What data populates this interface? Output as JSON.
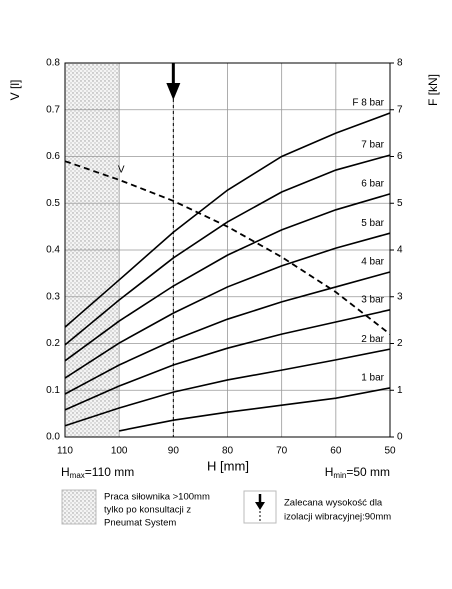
{
  "chart_data": {
    "type": "line",
    "x_label": "H [mm]",
    "y_label": "V [l]",
    "y2_label": "F [kN]",
    "x": [
      110,
      100,
      90,
      80,
      70,
      60,
      50
    ],
    "xlim": [
      110,
      50
    ],
    "xticks": [
      110,
      100,
      90,
      80,
      70,
      60,
      50
    ],
    "ylim": [
      0,
      0.8
    ],
    "yticks": [
      {
        "value": 0,
        "label": "0.0"
      },
      0.1,
      0.2,
      0.3,
      0.4,
      0.5,
      0.6,
      0.7,
      0.8
    ],
    "y2lim": [
      0,
      8
    ],
    "y2ticks": [
      0,
      1,
      2,
      3,
      4,
      5,
      6,
      7,
      8
    ],
    "grid": true,
    "series": [
      {
        "name": "V",
        "color": "#000000",
        "dashed": true,
        "values": [
          0.59,
          0.55,
          0.505,
          0.45,
          0.385,
          0.31,
          0.22
        ]
      },
      {
        "name": "F 8 bar",
        "color": "#000000",
        "axis": "y2",
        "values": [
          2.35,
          3.36,
          4.38,
          5.28,
          6.0,
          6.5,
          6.93
        ]
      },
      {
        "name": "7 bar",
        "color": "#000000",
        "axis": "y2",
        "values": [
          1.97,
          2.93,
          3.83,
          4.6,
          5.24,
          5.71,
          6.03
        ]
      },
      {
        "name": "6 bar",
        "color": "#000000",
        "axis": "y2",
        "values": [
          1.63,
          2.48,
          3.23,
          3.89,
          4.43,
          4.86,
          5.2
        ]
      },
      {
        "name": "5 bar",
        "color": "#000000",
        "axis": "y2",
        "values": [
          1.26,
          2.01,
          2.65,
          3.21,
          3.66,
          4.04,
          4.36
        ]
      },
      {
        "name": "4 bar",
        "color": "#000000",
        "axis": "y2",
        "values": [
          0.92,
          1.54,
          2.07,
          2.52,
          2.89,
          3.21,
          3.53
        ]
      },
      {
        "name": "3 bar",
        "color": "#000000",
        "axis": "y2",
        "values": [
          0.58,
          1.09,
          1.54,
          1.9,
          2.2,
          2.46,
          2.72
        ]
      },
      {
        "name": "2 bar",
        "color": "#000000",
        "axis": "y2",
        "values": [
          0.24,
          0.62,
          0.96,
          1.22,
          1.43,
          1.65,
          1.88
        ]
      },
      {
        "name": "1 bar",
        "color": "#000000",
        "axis": "y2",
        "values": [
          null,
          0.13,
          0.36,
          0.53,
          0.68,
          0.83,
          1.05
        ]
      }
    ],
    "hatch_range": [
      110,
      100
    ],
    "arrow_x": 90,
    "hmax_label": {
      "symbol": "H",
      "subscript": "max",
      "text": "=110 mm"
    },
    "hmin_label": {
      "symbol": "H",
      "subscript": "min",
      "text": "=50 mm"
    },
    "hatch_note": [
      "Praca siłownika >100mm",
      "tylko po konsultacji z",
      "Pneumat System"
    ],
    "arrow_note": [
      "Zalecana wysokość dla",
      "izolacji wibracyjnej:90mm"
    ]
  }
}
